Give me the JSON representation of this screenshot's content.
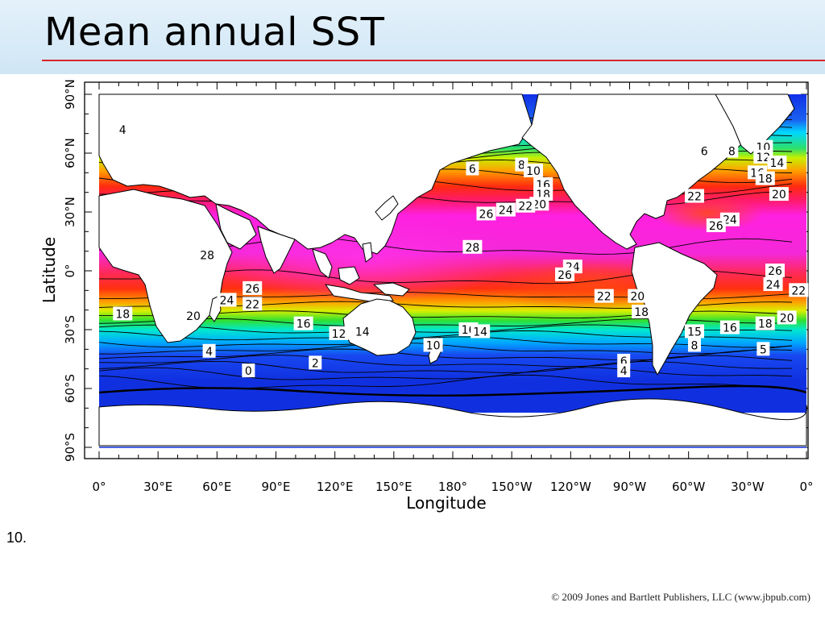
{
  "slide": {
    "title": "Mean annual SST",
    "number": "10.",
    "copyright": "© 2009 Jones and Bartlett Publishers, LLC (www.jbpub.com)"
  },
  "map": {
    "xlabel": "Longitude",
    "ylabel": "Latitude",
    "lon_ticks": [
      "0°",
      "30°E",
      "60°E",
      "90°E",
      "120°E",
      "150°E",
      "180°",
      "150°W",
      "120°W",
      "90°W",
      "60°W",
      "30°W",
      "0°"
    ],
    "lat_ticks": [
      "90°N",
      "60°N",
      "30°N",
      "0°",
      "30°S",
      "60°S",
      "90°S"
    ],
    "contour_labels": [
      {
        "text": "4",
        "lon": 12,
        "lat": 72
      },
      {
        "text": "6",
        "lon": 190,
        "lat": 52
      },
      {
        "text": "8",
        "lon": 215,
        "lat": 54
      },
      {
        "text": "10",
        "lon": 221,
        "lat": 51
      },
      {
        "text": "16",
        "lon": 226,
        "lat": 44
      },
      {
        "text": "18",
        "lon": 226,
        "lat": 39
      },
      {
        "text": "20",
        "lon": 224,
        "lat": 34
      },
      {
        "text": "22",
        "lon": 217,
        "lat": 33
      },
      {
        "text": "24",
        "lon": 207,
        "lat": 31
      },
      {
        "text": "26",
        "lon": 197,
        "lat": 29
      },
      {
        "text": "28",
        "lon": 190,
        "lat": 12
      },
      {
        "text": "24",
        "lon": 241,
        "lat": 2
      },
      {
        "text": "26",
        "lon": 237,
        "lat": -2
      },
      {
        "text": "22",
        "lon": 257,
        "lat": -13
      },
      {
        "text": "20",
        "lon": 274,
        "lat": -13
      },
      {
        "text": "18",
        "lon": 276,
        "lat": -21
      },
      {
        "text": "22",
        "lon": 303,
        "lat": 38
      },
      {
        "text": "24",
        "lon": 321,
        "lat": 26
      },
      {
        "text": "26",
        "lon": 314,
        "lat": 23
      },
      {
        "text": "6",
        "lon": 308,
        "lat": 61
      },
      {
        "text": "8",
        "lon": 322,
        "lat": 61
      },
      {
        "text": "10",
        "lon": 338,
        "lat": 63
      },
      {
        "text": "12",
        "lon": 338,
        "lat": 58
      },
      {
        "text": "14",
        "lon": 345,
        "lat": 55
      },
      {
        "text": "16",
        "lon": 335,
        "lat": 50
      },
      {
        "text": "18",
        "lon": 339,
        "lat": 47
      },
      {
        "text": "20",
        "lon": 346,
        "lat": 39
      },
      {
        "text": "26",
        "lon": 344,
        "lat": 0
      },
      {
        "text": "24",
        "lon": 343,
        "lat": -7
      },
      {
        "text": "22",
        "lon": 356,
        "lat": -10
      },
      {
        "text": "20",
        "lon": 350,
        "lat": -24
      },
      {
        "text": "18",
        "lon": 339,
        "lat": -27
      },
      {
        "text": "16",
        "lon": 321,
        "lat": -29
      },
      {
        "text": "15",
        "lon": 303,
        "lat": -31
      },
      {
        "text": "8",
        "lon": 303,
        "lat": -38
      },
      {
        "text": "5",
        "lon": 338,
        "lat": -40
      },
      {
        "text": "28",
        "lon": 55,
        "lat": 8
      },
      {
        "text": "26",
        "lon": 78,
        "lat": -9
      },
      {
        "text": "24",
        "lon": 65,
        "lat": -15
      },
      {
        "text": "22",
        "lon": 78,
        "lat": -17
      },
      {
        "text": "20",
        "lon": 48,
        "lat": -23
      },
      {
        "text": "18",
        "lon": 12,
        "lat": -22
      },
      {
        "text": "16",
        "lon": 104,
        "lat": -27
      },
      {
        "text": "12",
        "lon": 122,
        "lat": -32
      },
      {
        "text": "14",
        "lon": 134,
        "lat": -31
      },
      {
        "text": "16",
        "lon": 188,
        "lat": -30
      },
      {
        "text": "14",
        "lon": 194,
        "lat": -31
      },
      {
        "text": "10",
        "lon": 170,
        "lat": -38
      },
      {
        "text": "4",
        "lon": 56,
        "lat": -41
      },
      {
        "text": "2",
        "lon": 110,
        "lat": -47
      },
      {
        "text": "0",
        "lon": 76,
        "lat": -51
      },
      {
        "text": "6",
        "lon": 267,
        "lat": -46
      },
      {
        "text": "4",
        "lon": 267,
        "lat": -51
      }
    ]
  }
}
